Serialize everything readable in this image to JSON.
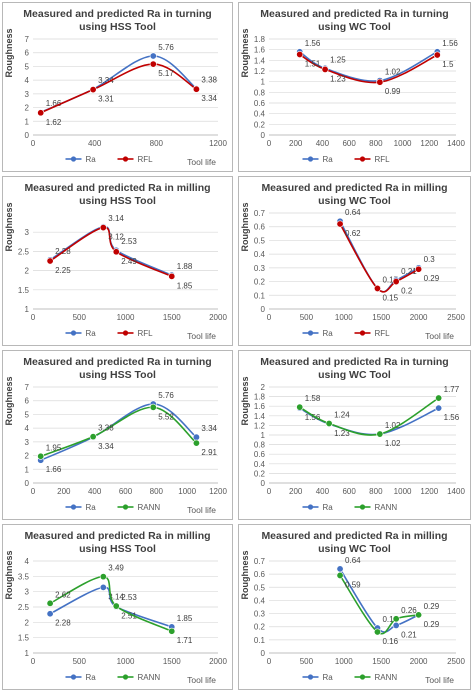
{
  "colors": {
    "ra": "#4472c4",
    "rfl": "#c00000",
    "rann": "#2ca02c",
    "grid": "#d9d9d9"
  },
  "chart_data": [
    {
      "type": "line",
      "title": [
        "Measured and predicted Ra in turning",
        "using HSS Tool"
      ],
      "ylabel": "Roughness",
      "xlabel": "Tool life",
      "xlim": [
        0,
        1200
      ],
      "xticks": [
        0,
        400,
        800,
        1200
      ],
      "ylim": [
        0,
        7
      ],
      "yticks": [
        0,
        1,
        2,
        3,
        4,
        5,
        6,
        7
      ],
      "series": [
        {
          "name": "Ra",
          "color": "#4472c4",
          "x": [
            50,
            390,
            780,
            1060
          ],
          "y": [
            1.66,
            3.34,
            5.76,
            3.38
          ],
          "labels": [
            "1.66",
            "3.34",
            "5.76",
            "3.38"
          ]
        },
        {
          "name": "RFL",
          "color": "#c00000",
          "x": [
            50,
            390,
            780,
            1060
          ],
          "y": [
            1.62,
            3.31,
            5.17,
            3.34
          ],
          "labels": [
            "1.62",
            "3.31",
            "5.17",
            "3.34"
          ]
        }
      ]
    },
    {
      "type": "line",
      "title": [
        "Measured and predicted Ra in turning",
        "using WC Tool"
      ],
      "ylabel": "Roughness",
      "xlabel": "",
      "xlim": [
        0,
        1400
      ],
      "xticks": [
        0,
        200,
        400,
        600,
        800,
        1000,
        1200,
        1400
      ],
      "ylim": [
        0,
        1.8
      ],
      "yticks": [
        0,
        0.2,
        0.4,
        0.6,
        0.8,
        1,
        1.2,
        1.4,
        1.6,
        1.8
      ],
      "series": [
        {
          "name": "Ra",
          "color": "#4472c4",
          "x": [
            230,
            420,
            830,
            1260
          ],
          "y": [
            1.56,
            1.25,
            1.02,
            1.56
          ],
          "labels": [
            "1.56",
            "1.25",
            "1.02",
            "1.56"
          ]
        },
        {
          "name": "RFL",
          "color": "#c00000",
          "x": [
            230,
            420,
            830,
            1260
          ],
          "y": [
            1.51,
            1.23,
            0.99,
            1.5
          ],
          "labels": [
            "1.51",
            "1.23",
            "0.99",
            "1.5"
          ]
        }
      ]
    },
    {
      "type": "line",
      "title": [
        "Measured and predicted Ra in milling",
        "using HSS Tool"
      ],
      "ylabel": "Roughness",
      "xlabel": "Tool life",
      "xlim": [
        0,
        2000
      ],
      "xticks": [
        0,
        500,
        1000,
        1500,
        2000
      ],
      "ylim": [
        1,
        3.5
      ],
      "yticks": [
        1,
        1.5,
        2,
        2.5,
        3
      ],
      "series": [
        {
          "name": "Ra",
          "color": "#4472c4",
          "x": [
            185,
            760,
            900,
            1500
          ],
          "y": [
            2.28,
            3.14,
            2.53,
            1.88
          ],
          "labels": [
            "2.28",
            "3.14",
            "2.53",
            "1.88"
          ]
        },
        {
          "name": "RFL",
          "color": "#c00000",
          "x": [
            185,
            760,
            900,
            1500
          ],
          "y": [
            2.25,
            3.12,
            2.49,
            1.85
          ],
          "labels": [
            "2.25",
            "3.12",
            "2.49",
            "1.85"
          ]
        }
      ]
    },
    {
      "type": "line",
      "title": [
        "Measured and predicted Ra in milling",
        "using WC Tool"
      ],
      "ylabel": "Roughness",
      "xlabel": "Tool life",
      "xlim": [
        0,
        2500
      ],
      "xticks": [
        0,
        500,
        1000,
        1500,
        2000,
        2500
      ],
      "ylim": [
        0,
        0.7
      ],
      "yticks": [
        0,
        0.1,
        0.2,
        0.3,
        0.4,
        0.5,
        0.6,
        0.7
      ],
      "series": [
        {
          "name": "Ra",
          "color": "#4472c4",
          "x": [
            950,
            1450,
            1700,
            2000
          ],
          "y": [
            0.64,
            0.15,
            0.21,
            0.3
          ],
          "labels": [
            "0.64",
            "0.15",
            "0.21",
            "0.3"
          ]
        },
        {
          "name": "RFL",
          "color": "#c00000",
          "x": [
            950,
            1450,
            1700,
            2000
          ],
          "y": [
            0.62,
            0.15,
            0.2,
            0.29
          ],
          "labels": [
            "0.62",
            "0.15",
            "0.2",
            "0.29"
          ]
        }
      ]
    },
    {
      "type": "line",
      "title": [
        "Measured and predicted Ra in turning",
        "using HSS Tool"
      ],
      "ylabel": "Roughness",
      "xlabel": "Tool life",
      "xlim": [
        0,
        1200
      ],
      "xticks": [
        0,
        200,
        400,
        600,
        800,
        1000,
        1200
      ],
      "ylim": [
        0,
        7
      ],
      "yticks": [
        0,
        1,
        2,
        3,
        4,
        5,
        6,
        7
      ],
      "series": [
        {
          "name": "Ra",
          "color": "#4472c4",
          "x": [
            50,
            390,
            780,
            1060
          ],
          "y": [
            1.66,
            3.34,
            5.76,
            3.34
          ],
          "labels": [
            "1.66",
            "3.34",
            "5.76",
            "3.34"
          ]
        },
        {
          "name": "RANN",
          "color": "#2ca02c",
          "x": [
            50,
            390,
            780,
            1060
          ],
          "y": [
            1.95,
            3.38,
            5.52,
            2.91
          ],
          "labels": [
            "1.95",
            "3.38",
            "5.52",
            "2.91"
          ]
        }
      ]
    },
    {
      "type": "line",
      "title": [
        "Measured and predicted Ra in turning",
        "using WC Tool"
      ],
      "ylabel": "Roughness",
      "xlabel": "",
      "xlim": [
        0,
        1400
      ],
      "xticks": [
        0,
        200,
        400,
        600,
        800,
        1000,
        1200,
        1400
      ],
      "ylim": [
        0,
        2
      ],
      "yticks": [
        0,
        0.2,
        0.4,
        0.6,
        0.8,
        1,
        1.2,
        1.4,
        1.6,
        1.8,
        2
      ],
      "series": [
        {
          "name": "Ra",
          "color": "#4472c4",
          "x": [
            230,
            450,
            830,
            1270
          ],
          "y": [
            1.56,
            1.23,
            1.02,
            1.56
          ],
          "labels": [
            "1.56",
            "1.23",
            "1.02",
            "1.56"
          ]
        },
        {
          "name": "RANN",
          "color": "#2ca02c",
          "x": [
            230,
            450,
            830,
            1270
          ],
          "y": [
            1.58,
            1.24,
            1.02,
            1.77
          ],
          "labels": [
            "1.58",
            "1.24",
            "1.02",
            "1.77"
          ]
        }
      ]
    },
    {
      "type": "line",
      "title": [
        "Measured and predicted Ra in milling",
        "using HSS Tool"
      ],
      "ylabel": "Roughness",
      "xlabel": "Tool life",
      "xlim": [
        0,
        2000
      ],
      "xticks": [
        0,
        500,
        1000,
        1500,
        2000
      ],
      "ylim": [
        1,
        4
      ],
      "yticks": [
        1,
        1.5,
        2,
        2.5,
        3,
        3.5,
        4
      ],
      "series": [
        {
          "name": "Ra",
          "color": "#4472c4",
          "x": [
            185,
            760,
            900,
            1500
          ],
          "y": [
            2.28,
            3.14,
            2.51,
            1.85
          ],
          "labels": [
            "2.28",
            "3.14",
            "2.51",
            "1.85"
          ]
        },
        {
          "name": "RANN",
          "color": "#2ca02c",
          "x": [
            185,
            760,
            900,
            1500
          ],
          "y": [
            2.62,
            3.49,
            2.53,
            1.71
          ],
          "labels": [
            "2.62",
            "3.49",
            "2.53",
            "1.71"
          ]
        }
      ]
    },
    {
      "type": "line",
      "title": [
        "Measured and predicted Ra in milling",
        "using WC Tool"
      ],
      "ylabel": "Roughness",
      "xlabel": "Tool life",
      "xlim": [
        0,
        2500
      ],
      "xticks": [
        0,
        500,
        1000,
        1500,
        2000,
        2500
      ],
      "ylim": [
        0,
        0.7
      ],
      "yticks": [
        0,
        0.1,
        0.2,
        0.3,
        0.4,
        0.5,
        0.6,
        0.7
      ],
      "series": [
        {
          "name": "Ra",
          "color": "#4472c4",
          "x": [
            950,
            1450,
            1700,
            2000
          ],
          "y": [
            0.64,
            0.19,
            0.21,
            0.29
          ],
          "labels": [
            "0.64",
            "0.19",
            "0.21",
            "0.29"
          ]
        },
        {
          "name": "RANN",
          "color": "#2ca02c",
          "x": [
            950,
            1450,
            1700,
            2000
          ],
          "y": [
            0.59,
            0.16,
            0.26,
            0.29
          ],
          "labels": [
            "0.59",
            "0.16",
            "0.26",
            "0.29"
          ]
        }
      ]
    }
  ]
}
